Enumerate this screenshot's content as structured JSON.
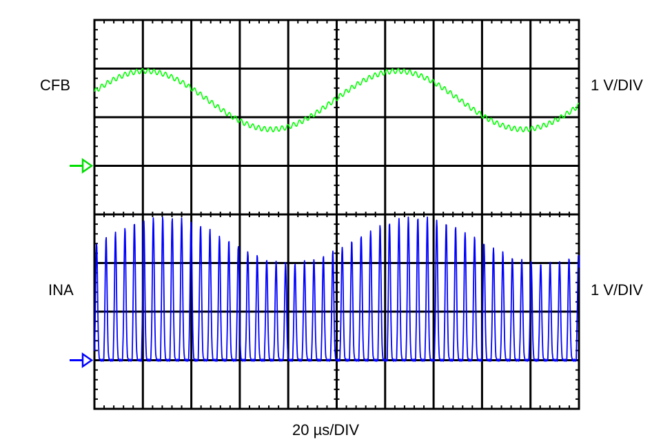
{
  "chart_data": {
    "type": "line",
    "channels": [
      {
        "name": "CFB",
        "scale_label": "1 V/DIV",
        "color": "#00ff00",
        "marker_color": "#00dd00",
        "ground_div": 3,
        "waveform": "sine",
        "mean_v": 1.35,
        "amplitude_v": 0.6,
        "period_div": 5.2,
        "phase_div": -0.25,
        "ripple_v": 0.05,
        "ripple_period_div": 0.12
      },
      {
        "name": "INA",
        "scale_label": "1 V/DIV",
        "color": "#0000ff",
        "marker_color": "#0000ff",
        "ground_div": 7,
        "waveform": "pulse_train",
        "pulse_period_div": 0.195,
        "pulse_width_div": 0.09,
        "peak_v_min": 2.0,
        "peak_v_max": 2.95,
        "envelope_period_div": 5.2,
        "envelope_phase_div": 0.15
      }
    ],
    "time_scale_label": "20 µs/DIV",
    "divisions": {
      "x": 10,
      "y": 8
    },
    "grid": true
  }
}
